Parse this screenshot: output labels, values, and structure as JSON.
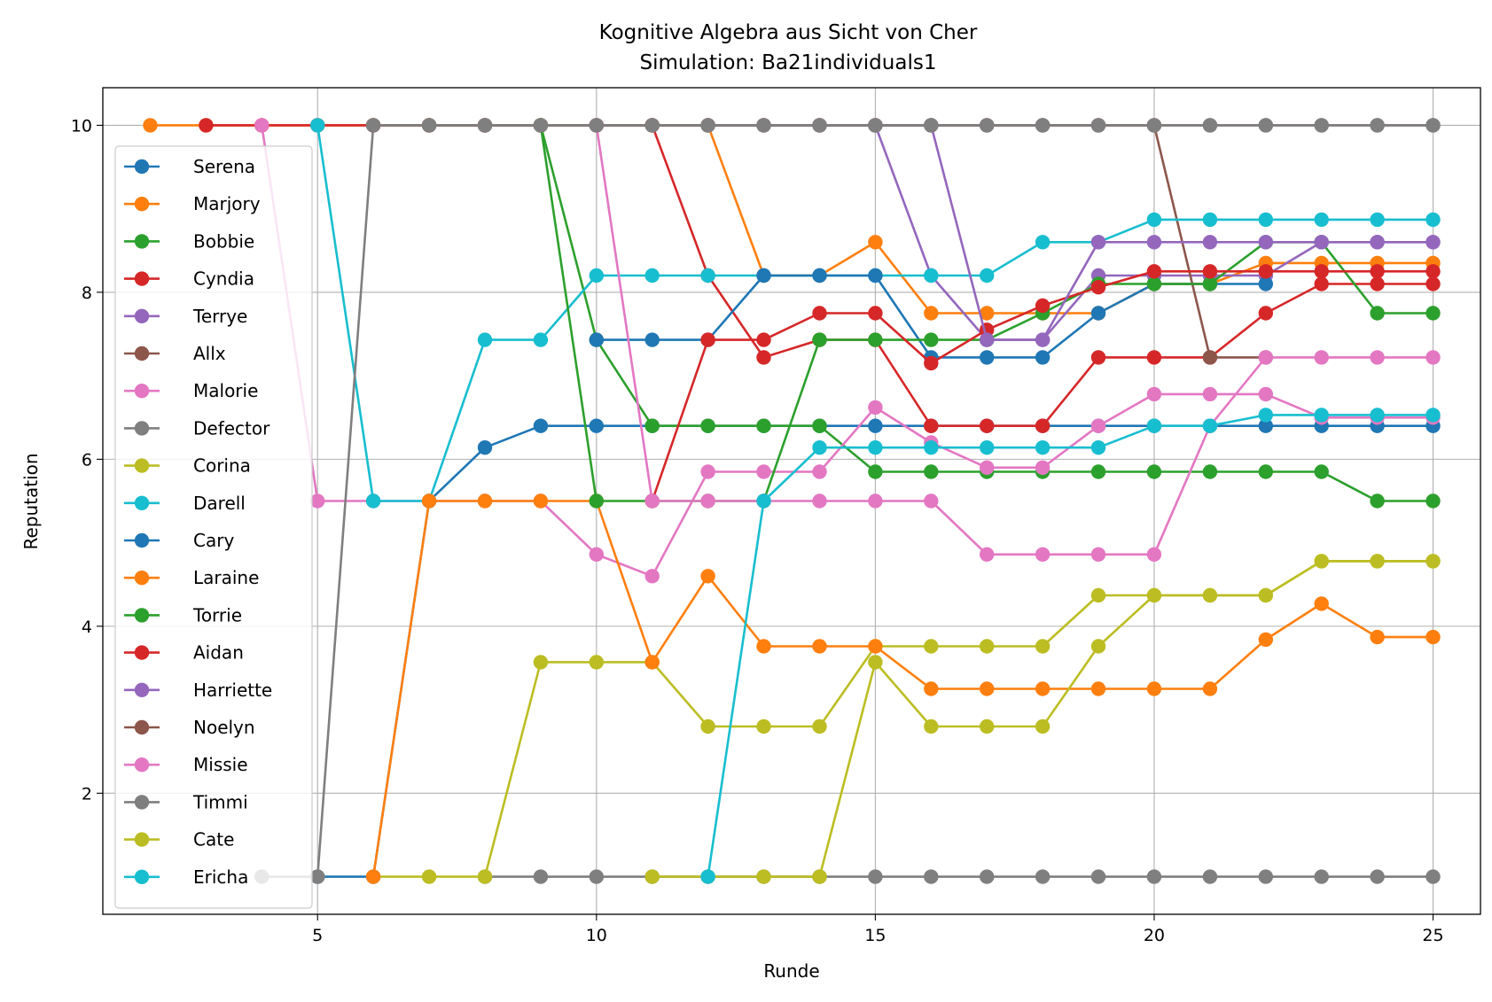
{
  "chart_data": {
    "type": "line",
    "title": "Kognitive Algebra aus Sicht von Cher",
    "subtitle": "Simulation: Ba21individuals1",
    "xlabel": "Runde",
    "ylabel": "Reputation",
    "xlim": [
      1.15,
      25.85
    ],
    "ylim": [
      0.55,
      10.45
    ],
    "xticks": [
      5,
      10,
      15,
      20,
      25
    ],
    "yticks": [
      2,
      4,
      6,
      8,
      10
    ],
    "grid": true,
    "legend_position": "left",
    "series": [
      {
        "name": "Serena",
        "color": "#1f77b4",
        "x": [
          5,
          6,
          7,
          8,
          9,
          10,
          11,
          12,
          13,
          14,
          15,
          16,
          17,
          18,
          19,
          20,
          21,
          22,
          23,
          24,
          25
        ],
        "y": [
          1,
          1,
          5.5,
          6.14,
          6.4,
          6.4,
          6.4,
          6.4,
          6.4,
          6.4,
          6.4,
          6.4,
          6.4,
          6.4,
          6.4,
          6.4,
          6.4,
          6.4,
          6.4,
          6.4,
          6.4
        ]
      },
      {
        "name": "Marjory",
        "color": "#ff7f0e",
        "x": [
          2,
          3,
          4,
          5,
          6,
          7,
          8,
          9,
          10,
          11,
          12,
          13,
          14,
          15,
          16,
          17,
          18,
          19,
          20,
          21,
          22,
          23,
          24,
          25
        ],
        "y": [
          10,
          10,
          10,
          10,
          10,
          10,
          10,
          10,
          10,
          10,
          10,
          8.2,
          8.2,
          8.6,
          7.75,
          7.75,
          7.75,
          7.75,
          8.1,
          8.1,
          8.35,
          8.35,
          8.35,
          8.35
        ]
      },
      {
        "name": "Bobbie",
        "color": "#2ca02c",
        "x": [
          8,
          9,
          10,
          11,
          12,
          13,
          14,
          15,
          16,
          17,
          18,
          19,
          20,
          21,
          22,
          23,
          24,
          25
        ],
        "y": [
          10,
          10,
          7.43,
          6.4,
          6.4,
          6.4,
          6.4,
          5.85,
          5.85,
          5.85,
          5.85,
          5.85,
          5.85,
          5.85,
          5.85,
          5.85,
          5.5,
          5.5
        ]
      },
      {
        "name": "Cyndia",
        "color": "#d62728",
        "x": [
          3,
          4,
          5,
          6,
          7,
          8,
          9,
          10,
          11,
          12,
          13,
          14,
          15,
          16,
          17,
          18,
          19,
          20,
          21,
          22,
          23,
          24,
          25
        ],
        "y": [
          10,
          10,
          10,
          10,
          10,
          10,
          10,
          10,
          10,
          8.2,
          7.22,
          7.43,
          7.43,
          6.4,
          6.4,
          6.4,
          7.22,
          7.22,
          7.22,
          7.75,
          8.1,
          8.1,
          8.1
        ]
      },
      {
        "name": "Terrye",
        "color": "#9467bd",
        "x": [
          8,
          9,
          10,
          11,
          12,
          13,
          14,
          15,
          16,
          17,
          18,
          19,
          20,
          21,
          22,
          23,
          24,
          25
        ],
        "y": [
          10,
          10,
          10,
          10,
          10,
          10,
          10,
          10,
          8.2,
          7.43,
          7.43,
          8.2,
          8.2,
          8.2,
          8.2,
          8.6,
          8.6,
          8.6
        ]
      },
      {
        "name": "Allx",
        "color": "#8c564b",
        "x": [
          6,
          7,
          8,
          9,
          10,
          11,
          12,
          13,
          14,
          15,
          16,
          17,
          18,
          19,
          20,
          21,
          22
        ],
        "y": [
          10,
          10,
          10,
          10,
          10,
          10,
          10,
          10,
          10,
          10,
          10,
          10,
          10,
          10,
          10,
          7.22,
          7.22
        ]
      },
      {
        "name": "Malorie",
        "color": "#e377c2",
        "x": [
          4,
          5,
          6,
          7,
          8,
          9,
          10,
          11,
          12,
          13,
          14,
          15,
          16,
          17,
          18,
          19,
          20,
          21,
          22,
          23,
          24,
          25
        ],
        "y": [
          10,
          5.5,
          5.5,
          5.5,
          5.5,
          5.5,
          4.86,
          4.6,
          5.85,
          5.85,
          5.85,
          6.62,
          6.2,
          5.9,
          5.9,
          6.4,
          6.78,
          6.78,
          6.78,
          6.5,
          6.5,
          6.5
        ]
      },
      {
        "name": "Defector",
        "color": "#7f7f7f",
        "x": [
          8,
          9,
          10,
          11,
          12,
          13,
          14,
          15,
          16,
          17,
          18,
          19,
          20,
          21,
          22,
          23,
          24,
          25
        ],
        "y": [
          1,
          1,
          1,
          1,
          1,
          1,
          1,
          1,
          1,
          1,
          1,
          1,
          1,
          1,
          1,
          1,
          1,
          1
        ]
      },
      {
        "name": "Corina",
        "color": "#bcbd22",
        "x": [
          6,
          7,
          8,
          9,
          10,
          11,
          12,
          13,
          14,
          15,
          16,
          17,
          18,
          19,
          20,
          21,
          22,
          23,
          24,
          25
        ],
        "y": [
          1,
          1,
          1,
          3.57,
          3.57,
          3.57,
          2.8,
          2.8,
          2.8,
          3.76,
          3.76,
          3.76,
          3.76,
          4.37,
          4.37,
          4.37,
          4.37,
          4.78,
          4.78,
          4.78
        ]
      },
      {
        "name": "Darell",
        "color": "#17becf",
        "x": [
          5,
          6,
          7,
          8,
          9,
          10,
          11,
          12,
          13,
          14,
          15,
          16,
          17,
          18,
          19,
          20,
          21,
          22,
          23,
          24,
          25
        ],
        "y": [
          10,
          5.5,
          5.5,
          7.43,
          7.43,
          8.2,
          8.2,
          8.2,
          8.2,
          8.2,
          8.2,
          8.2,
          8.2,
          8.6,
          8.6,
          8.87,
          8.87,
          8.87,
          8.87,
          8.87,
          8.87
        ]
      },
      {
        "name": "Cary",
        "color": "#1f77b4",
        "x": [
          10,
          11,
          12,
          13,
          14,
          15,
          16,
          17,
          18,
          19,
          20,
          21,
          22
        ],
        "y": [
          7.43,
          7.43,
          7.43,
          8.2,
          8.2,
          8.2,
          7.22,
          7.22,
          7.22,
          7.75,
          8.1,
          8.1,
          8.1
        ]
      },
      {
        "name": "Laraine",
        "color": "#ff7f0e",
        "x": [
          6,
          7,
          8,
          9,
          10,
          11,
          12,
          13,
          14,
          15,
          16,
          17,
          18,
          19,
          20,
          21,
          22,
          23,
          24,
          25
        ],
        "y": [
          1,
          5.5,
          5.5,
          5.5,
          5.5,
          3.57,
          4.6,
          3.76,
          3.76,
          3.76,
          3.25,
          3.25,
          3.25,
          3.25,
          3.25,
          3.25,
          3.84,
          4.27,
          3.87,
          3.87
        ]
      },
      {
        "name": "Torrie",
        "color": "#2ca02c",
        "x": [
          9,
          10,
          11,
          12,
          13,
          14,
          15,
          16,
          17,
          18,
          19,
          20,
          21,
          22,
          23,
          24,
          25
        ],
        "y": [
          10,
          5.5,
          5.5,
          5.5,
          5.5,
          7.43,
          7.43,
          7.43,
          7.43,
          7.75,
          8.1,
          8.1,
          8.1,
          8.6,
          8.6,
          7.75,
          7.75
        ]
      },
      {
        "name": "Aidan",
        "color": "#d62728",
        "x": [
          11,
          12,
          13,
          14,
          15,
          16,
          17,
          18,
          19,
          20,
          21,
          22,
          23,
          24,
          25
        ],
        "y": [
          5.5,
          7.43,
          7.43,
          7.75,
          7.75,
          7.15,
          7.55,
          7.84,
          8.06,
          8.25,
          8.25,
          8.25,
          8.25,
          8.25,
          8.25
        ]
      },
      {
        "name": "Harriette",
        "color": "#9467bd",
        "x": [
          15,
          16,
          17,
          18,
          19,
          20,
          21,
          22,
          23,
          24,
          25
        ],
        "y": [
          10,
          10,
          7.43,
          7.43,
          8.6,
          8.6,
          8.6,
          8.6,
          8.6,
          8.6,
          8.6
        ]
      },
      {
        "name": "Noelyn",
        "color": "#8c564b",
        "x": [
          7,
          8,
          9,
          10,
          11,
          12,
          13,
          14,
          15,
          16,
          17,
          18,
          19,
          20,
          21,
          22,
          23,
          24,
          25
        ],
        "y": [
          10,
          10,
          10,
          10,
          10,
          10,
          10,
          10,
          10,
          10,
          10,
          10,
          10,
          10,
          10,
          10,
          10,
          10,
          10
        ]
      },
      {
        "name": "Missie",
        "color": "#e377c2",
        "x": [
          10,
          11,
          12,
          13,
          14,
          15,
          16,
          17,
          18,
          19,
          20,
          21,
          22,
          23,
          24,
          25
        ],
        "y": [
          10,
          5.5,
          5.5,
          5.5,
          5.5,
          5.5,
          5.5,
          4.86,
          4.86,
          4.86,
          4.86,
          6.4,
          7.22,
          7.22,
          7.22,
          7.22
        ]
      },
      {
        "name": "Timmi",
        "color": "#7f7f7f",
        "x": [
          4,
          5,
          6,
          7,
          8,
          9,
          10,
          11,
          12,
          13,
          14,
          15,
          16,
          17,
          18,
          19,
          20,
          21,
          22,
          23,
          24,
          25
        ],
        "y": [
          1,
          1,
          10,
          10,
          10,
          10,
          10,
          10,
          10,
          10,
          10,
          10,
          10,
          10,
          10,
          10,
          10,
          10,
          10,
          10,
          10,
          10
        ]
      },
      {
        "name": "Cate",
        "color": "#bcbd22",
        "x": [
          11,
          12,
          13,
          14,
          15,
          16,
          17,
          18,
          19,
          20,
          21,
          22,
          23,
          24,
          25
        ],
        "y": [
          1,
          1,
          1,
          1,
          3.57,
          2.8,
          2.8,
          2.8,
          3.76,
          4.37,
          4.37,
          4.37,
          4.78,
          4.78,
          4.78
        ]
      },
      {
        "name": "Ericha",
        "color": "#17becf",
        "x": [
          12,
          13,
          14,
          15,
          16,
          17,
          18,
          19,
          20,
          21,
          22,
          23,
          24,
          25
        ],
        "y": [
          1,
          5.5,
          6.14,
          6.14,
          6.14,
          6.14,
          6.14,
          6.14,
          6.4,
          6.4,
          6.53,
          6.53,
          6.53,
          6.53
        ]
      }
    ]
  }
}
